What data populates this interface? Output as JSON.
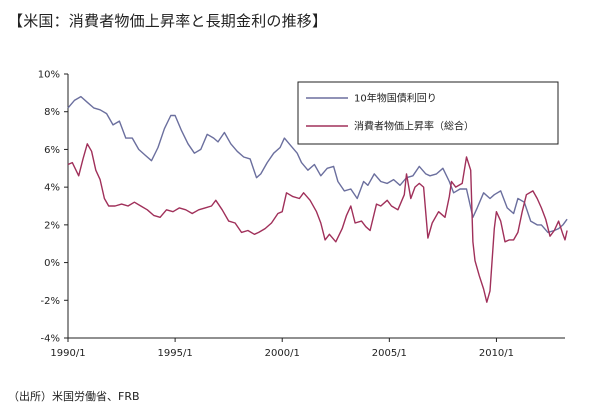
{
  "title": "【米国：消費者物価上昇率と長期金利の推移】",
  "source": "（出所）米国労働省、FRB",
  "chart_data": {
    "type": "line",
    "title": "【米国：消費者物価上昇率と長期金利の推移】",
    "xlabel": "",
    "ylabel": "",
    "xlim": [
      1990.0,
      2013.2
    ],
    "ylim": [
      -4,
      10
    ],
    "x_ticks": [
      {
        "value": 1990.0,
        "label": "1990/1"
      },
      {
        "value": 1995.0,
        "label": "1995/1"
      },
      {
        "value": 2000.0,
        "label": "2000/1"
      },
      {
        "value": 2005.0,
        "label": "2005/1"
      },
      {
        "value": 2010.0,
        "label": "2010/1"
      }
    ],
    "y_ticks": [
      {
        "value": 10,
        "label": "10%"
      },
      {
        "value": 8,
        "label": "8%"
      },
      {
        "value": 6,
        "label": "6%"
      },
      {
        "value": 4,
        "label": "4%"
      },
      {
        "value": 2,
        "label": "2%"
      },
      {
        "value": 0,
        "label": "0%"
      },
      {
        "value": -2,
        "label": "-2%"
      },
      {
        "value": -4,
        "label": "-4%"
      }
    ],
    "grid": false,
    "legend": "top-right inside box",
    "series": [
      {
        "name": "10年物国債利回り",
        "color": "#6b6f9e",
        "points": [
          [
            1990.0,
            8.2
          ],
          [
            1990.3,
            8.6
          ],
          [
            1990.6,
            8.8
          ],
          [
            1990.9,
            8.5
          ],
          [
            1991.2,
            8.2
          ],
          [
            1991.5,
            8.1
          ],
          [
            1991.8,
            7.9
          ],
          [
            1992.1,
            7.3
          ],
          [
            1992.4,
            7.5
          ],
          [
            1992.7,
            6.6
          ],
          [
            1993.0,
            6.6
          ],
          [
            1993.3,
            6.0
          ],
          [
            1993.6,
            5.7
          ],
          [
            1993.9,
            5.4
          ],
          [
            1994.2,
            6.1
          ],
          [
            1994.5,
            7.1
          ],
          [
            1994.8,
            7.8
          ],
          [
            1995.0,
            7.8
          ],
          [
            1995.3,
            7.0
          ],
          [
            1995.6,
            6.3
          ],
          [
            1995.9,
            5.8
          ],
          [
            1996.2,
            6.0
          ],
          [
            1996.5,
            6.8
          ],
          [
            1996.8,
            6.6
          ],
          [
            1997.0,
            6.4
          ],
          [
            1997.3,
            6.9
          ],
          [
            1997.6,
            6.3
          ],
          [
            1997.9,
            5.9
          ],
          [
            1998.2,
            5.6
          ],
          [
            1998.5,
            5.5
          ],
          [
            1998.8,
            4.5
          ],
          [
            1999.0,
            4.7
          ],
          [
            1999.3,
            5.3
          ],
          [
            1999.6,
            5.8
          ],
          [
            1999.9,
            6.1
          ],
          [
            2000.1,
            6.6
          ],
          [
            2000.4,
            6.2
          ],
          [
            2000.7,
            5.8
          ],
          [
            2000.9,
            5.3
          ],
          [
            2001.2,
            4.9
          ],
          [
            2001.5,
            5.2
          ],
          [
            2001.8,
            4.6
          ],
          [
            2002.1,
            5.0
          ],
          [
            2002.4,
            5.1
          ],
          [
            2002.6,
            4.3
          ],
          [
            2002.9,
            3.8
          ],
          [
            2003.2,
            3.9
          ],
          [
            2003.5,
            3.4
          ],
          [
            2003.8,
            4.3
          ],
          [
            2004.0,
            4.1
          ],
          [
            2004.3,
            4.7
          ],
          [
            2004.6,
            4.3
          ],
          [
            2004.9,
            4.2
          ],
          [
            2005.2,
            4.4
          ],
          [
            2005.5,
            4.1
          ],
          [
            2005.8,
            4.5
          ],
          [
            2006.1,
            4.6
          ],
          [
            2006.4,
            5.1
          ],
          [
            2006.7,
            4.7
          ],
          [
            2006.9,
            4.6
          ],
          [
            2007.2,
            4.7
          ],
          [
            2007.5,
            5.0
          ],
          [
            2007.8,
            4.3
          ],
          [
            2008.0,
            3.7
          ],
          [
            2008.3,
            3.9
          ],
          [
            2008.6,
            3.9
          ],
          [
            2008.9,
            2.4
          ],
          [
            2009.1,
            2.9
          ],
          [
            2009.4,
            3.7
          ],
          [
            2009.7,
            3.4
          ],
          [
            2009.9,
            3.6
          ],
          [
            2010.2,
            3.8
          ],
          [
            2010.5,
            2.9
          ],
          [
            2010.8,
            2.6
          ],
          [
            2011.0,
            3.4
          ],
          [
            2011.3,
            3.2
          ],
          [
            2011.6,
            2.2
          ],
          [
            2011.9,
            2.0
          ],
          [
            2012.1,
            2.0
          ],
          [
            2012.4,
            1.6
          ],
          [
            2012.7,
            1.7
          ],
          [
            2012.9,
            1.8
          ],
          [
            2013.1,
            2.0
          ],
          [
            2013.3,
            2.3
          ]
        ]
      },
      {
        "name": "消費者物価上昇率（総合）",
        "color": "#a0305a",
        "points": [
          [
            1990.0,
            5.2
          ],
          [
            1990.2,
            5.3
          ],
          [
            1990.5,
            4.6
          ],
          [
            1990.7,
            5.5
          ],
          [
            1990.9,
            6.3
          ],
          [
            1991.1,
            5.9
          ],
          [
            1991.3,
            4.9
          ],
          [
            1991.5,
            4.4
          ],
          [
            1991.7,
            3.4
          ],
          [
            1991.9,
            3.0
          ],
          [
            1992.2,
            3.0
          ],
          [
            1992.5,
            3.1
          ],
          [
            1992.8,
            3.0
          ],
          [
            1993.1,
            3.2
          ],
          [
            1993.4,
            3.0
          ],
          [
            1993.7,
            2.8
          ],
          [
            1994.0,
            2.5
          ],
          [
            1994.3,
            2.4
          ],
          [
            1994.6,
            2.8
          ],
          [
            1994.9,
            2.7
          ],
          [
            1995.2,
            2.9
          ],
          [
            1995.5,
            2.8
          ],
          [
            1995.8,
            2.6
          ],
          [
            1996.1,
            2.8
          ],
          [
            1996.4,
            2.9
          ],
          [
            1996.7,
            3.0
          ],
          [
            1996.9,
            3.3
          ],
          [
            1997.2,
            2.8
          ],
          [
            1997.5,
            2.2
          ],
          [
            1997.8,
            2.1
          ],
          [
            1998.1,
            1.6
          ],
          [
            1998.4,
            1.7
          ],
          [
            1998.7,
            1.5
          ],
          [
            1998.9,
            1.6
          ],
          [
            1999.2,
            1.8
          ],
          [
            1999.5,
            2.1
          ],
          [
            1999.8,
            2.6
          ],
          [
            2000.0,
            2.7
          ],
          [
            2000.2,
            3.7
          ],
          [
            2000.5,
            3.5
          ],
          [
            2000.8,
            3.4
          ],
          [
            2001.0,
            3.7
          ],
          [
            2001.3,
            3.3
          ],
          [
            2001.6,
            2.7
          ],
          [
            2001.8,
            2.1
          ],
          [
            2002.0,
            1.2
          ],
          [
            2002.2,
            1.5
          ],
          [
            2002.5,
            1.1
          ],
          [
            2002.8,
            1.8
          ],
          [
            2003.0,
            2.5
          ],
          [
            2003.2,
            3.0
          ],
          [
            2003.4,
            2.1
          ],
          [
            2003.7,
            2.2
          ],
          [
            2003.9,
            1.9
          ],
          [
            2004.1,
            1.7
          ],
          [
            2004.4,
            3.1
          ],
          [
            2004.6,
            3.0
          ],
          [
            2004.9,
            3.3
          ],
          [
            2005.1,
            3.0
          ],
          [
            2005.4,
            2.8
          ],
          [
            2005.7,
            3.6
          ],
          [
            2005.8,
            4.7
          ],
          [
            2006.0,
            3.4
          ],
          [
            2006.2,
            4.0
          ],
          [
            2006.4,
            4.2
          ],
          [
            2006.6,
            4.0
          ],
          [
            2006.8,
            1.3
          ],
          [
            2007.0,
            2.1
          ],
          [
            2007.3,
            2.7
          ],
          [
            2007.6,
            2.4
          ],
          [
            2007.8,
            3.5
          ],
          [
            2007.9,
            4.3
          ],
          [
            2008.1,
            4.0
          ],
          [
            2008.4,
            4.2
          ],
          [
            2008.6,
            5.6
          ],
          [
            2008.8,
            4.9
          ],
          [
            2008.9,
            1.1
          ],
          [
            2009.0,
            0.1
          ],
          [
            2009.2,
            -0.7
          ],
          [
            2009.4,
            -1.4
          ],
          [
            2009.55,
            -2.1
          ],
          [
            2009.7,
            -1.5
          ],
          [
            2009.9,
            1.8
          ],
          [
            2010.0,
            2.7
          ],
          [
            2010.2,
            2.2
          ],
          [
            2010.4,
            1.1
          ],
          [
            2010.6,
            1.2
          ],
          [
            2010.8,
            1.2
          ],
          [
            2011.0,
            1.6
          ],
          [
            2011.2,
            2.7
          ],
          [
            2011.4,
            3.6
          ],
          [
            2011.7,
            3.8
          ],
          [
            2011.9,
            3.4
          ],
          [
            2012.1,
            2.9
          ],
          [
            2012.3,
            2.3
          ],
          [
            2012.5,
            1.4
          ],
          [
            2012.7,
            1.7
          ],
          [
            2012.9,
            2.2
          ],
          [
            2013.1,
            1.5
          ],
          [
            2013.2,
            1.2
          ],
          [
            2013.3,
            1.7
          ]
        ]
      }
    ]
  }
}
